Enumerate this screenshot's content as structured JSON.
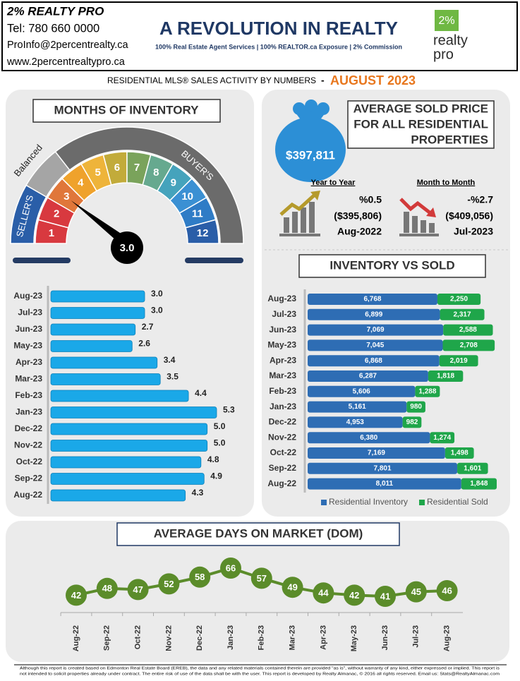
{
  "header": {
    "brand": "2% REALTY PRO",
    "tel": "Tel: 780 660 0000",
    "email": "ProInfo@2percentrealty.ca",
    "web": "www.2percentrealtypro.ca",
    "headline": "A REVOLUTION IN REALTY",
    "tagline": "100% Real Estate Agent Services | 100% REALTOR.ca Exposure | 2% Commission",
    "logo": [
      "2%",
      "realty",
      "pro"
    ]
  },
  "subtitle": "RESIDENTIAL MLS® SALES ACTIVITY BY NUMBERS",
  "separator": "-",
  "period": "AUGUST 2023",
  "price": {
    "title": [
      "AVERAGE  SOLD PRICE",
      "FOR ALL RESIDENTIAL",
      "PROPERTIES"
    ],
    "value": "$397,811",
    "yoy": {
      "label": "Year to Year",
      "change": "%0.5",
      "previous": "($395,806)",
      "date": "Aug-2022"
    },
    "mom": {
      "label": "Month to Month",
      "change": "-%2.7",
      "previous": "($409,056)",
      "date": "Jul-2023"
    }
  },
  "chart_data": [
    {
      "type": "gauge",
      "title": "MONTHS OF INVENTORY",
      "value": 3,
      "value_label": "3.0",
      "ticks": [
        1,
        2,
        3,
        4,
        5,
        6,
        7,
        8,
        9,
        10,
        11,
        12
      ],
      "colors": [
        "#d8393f",
        "#d8393f",
        "#e0773a",
        "#efa22c",
        "#eeb43a",
        "#c2ab3a",
        "#7aa35b",
        "#66a98f",
        "#45a3bc",
        "#3b90d3",
        "#2f7cc6",
        "#2a5ea8"
      ],
      "zones": [
        "SELLER'S",
        "Balanced",
        "BUYER'S"
      ]
    },
    {
      "type": "hbar",
      "categories": [
        "Aug-23",
        "Jul-23",
        "Jun-23",
        "May-23",
        "Apr-23",
        "Mar-23",
        "Feb-23",
        "Jan-23",
        "Dec-22",
        "Nov-22",
        "Oct-22",
        "Sep-22",
        "Aug-22"
      ],
      "values": [
        3.0,
        3.0,
        2.7,
        2.6,
        3.4,
        3.5,
        4.4,
        5.3,
        5.0,
        5.0,
        4.8,
        4.9,
        4.3
      ],
      "value_labels": [
        "3.0",
        "3.0",
        "2.7",
        "2.6",
        "3.4",
        "3.5",
        "4.4",
        "5.3",
        "5.0",
        "5.0",
        "4.8",
        "4.9",
        "4.3"
      ],
      "color": "#1aa8e8"
    },
    {
      "type": "stacked_hbar",
      "title": "INVENTORY VS SOLD",
      "categories": [
        "Aug-23",
        "Jul-23",
        "Jun-23",
        "May-23",
        "Apr-23",
        "Mar-23",
        "Feb-23",
        "Jan-23",
        "Dec-22",
        "Nov-22",
        "Oct-22",
        "Sep-22",
        "Aug-22"
      ],
      "series": [
        {
          "name": "Residential Inventory",
          "color": "#2e6db4",
          "values": [
            6768,
            6899,
            7069,
            7045,
            6868,
            6287,
            5606,
            5161,
            4953,
            6380,
            7169,
            7801,
            8011
          ],
          "value_labels": [
            "6,768",
            "6,899",
            "7,069",
            "7,045",
            "6,868",
            "6,287",
            "5,606",
            "5,161",
            "4,953",
            "6,380",
            "7,169",
            "7,801",
            "8,011"
          ]
        },
        {
          "name": "Residential Sold",
          "color": "#1fa64a",
          "values": [
            2250,
            2317,
            2588,
            2708,
            2019,
            1818,
            1288,
            980,
            982,
            1274,
            1498,
            1601,
            1848
          ],
          "value_labels": [
            "2,250",
            "2,317",
            "2,588",
            "2,708",
            "2,019",
            "1,818",
            "1,288",
            "980",
            "982",
            "1,274",
            "1,498",
            "1,601",
            "1,848"
          ]
        }
      ]
    },
    {
      "type": "line",
      "title": "AVERAGE DAYS ON MARKET (DOM)",
      "categories": [
        "Aug-22",
        "Sep-22",
        "Oct-22",
        "Nov-22",
        "Dec-22",
        "Jan-23",
        "Feb-23",
        "Mar-23",
        "Apr-23",
        "May-23",
        "Jun-23",
        "Jul-23",
        "Aug-23"
      ],
      "values": [
        42,
        48,
        47,
        52,
        58,
        66,
        57,
        49,
        44,
        42,
        41,
        45,
        46
      ],
      "color": "#5b8c2a"
    }
  ],
  "footer": [
    "Although this report is created based on Edmonton Real Estate Board (EREB), the data and any related materials contained therein are provided \"as is\", without warranty of any kind, either expressed or implied.  This report is",
    "not intended to solicit properties already under contract.  The entire risk of use of the data shall be with the user.  This report is developed by Realty Almanac, © 2016 all rights reserved. Email us: Stats@RealtyAlmanac.com"
  ]
}
